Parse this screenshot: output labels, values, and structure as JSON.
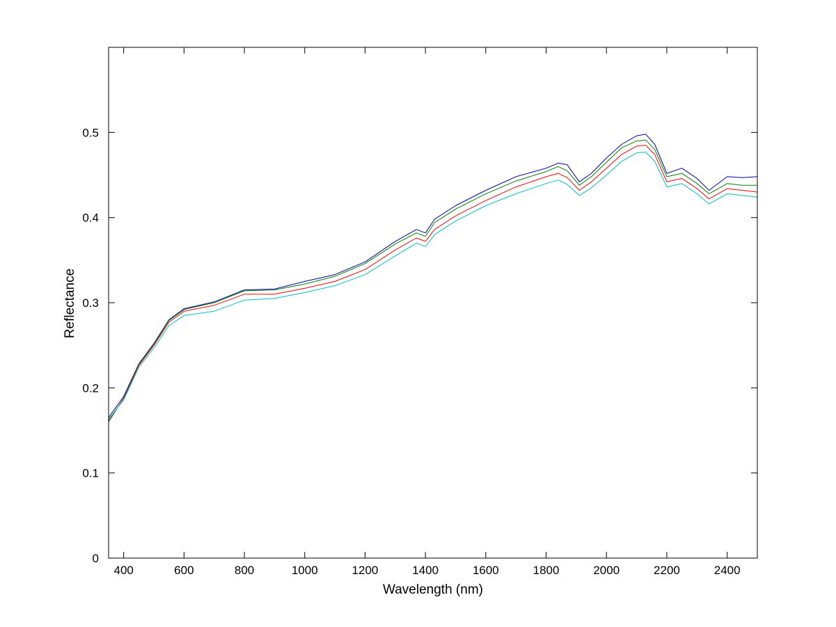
{
  "chart_data": {
    "type": "line",
    "title": "",
    "xlabel": "Wavelength (nm)",
    "ylabel": "Reflectance",
    "xlim": [
      350,
      2500
    ],
    "ylim": [
      0,
      0.6
    ],
    "x_ticks": [
      400,
      600,
      800,
      1000,
      1200,
      1400,
      1600,
      1800,
      2000,
      2200,
      2400
    ],
    "y_ticks": [
      0,
      0.1,
      0.2,
      0.3,
      0.4,
      0.5
    ],
    "y_tick_labels": [
      "0",
      "0.1",
      "0.2",
      "0.3",
      "0.4",
      "0.5"
    ],
    "grid": false,
    "legend": "none",
    "x": [
      350,
      400,
      450,
      500,
      550,
      600,
      700,
      800,
      900,
      1000,
      1100,
      1200,
      1300,
      1370,
      1400,
      1430,
      1500,
      1600,
      1700,
      1800,
      1840,
      1870,
      1910,
      1950,
      2000,
      2050,
      2100,
      2130,
      2160,
      2200,
      2250,
      2300,
      2340,
      2400,
      2450,
      2500
    ],
    "series": [
      {
        "color": "#0000aa",
        "values": [
          0.165,
          0.19,
          0.228,
          0.252,
          0.28,
          0.293,
          0.301,
          0.315,
          0.316,
          0.325,
          0.333,
          0.348,
          0.372,
          0.386,
          0.382,
          0.398,
          0.414,
          0.432,
          0.448,
          0.458,
          0.464,
          0.462,
          0.442,
          0.452,
          0.47,
          0.486,
          0.496,
          0.498,
          0.486,
          0.452,
          0.458,
          0.446,
          0.432,
          0.448,
          0.447,
          0.448
        ]
      },
      {
        "color": "#008000",
        "values": [
          0.16,
          0.188,
          0.227,
          0.251,
          0.279,
          0.292,
          0.3,
          0.314,
          0.315,
          0.322,
          0.331,
          0.346,
          0.369,
          0.382,
          0.378,
          0.394,
          0.41,
          0.428,
          0.443,
          0.454,
          0.46,
          0.455,
          0.438,
          0.448,
          0.465,
          0.482,
          0.49,
          0.491,
          0.48,
          0.448,
          0.452,
          0.44,
          0.428,
          0.44,
          0.438,
          0.438
        ]
      },
      {
        "color": "#ff0000",
        "values": [
          0.162,
          0.187,
          0.226,
          0.25,
          0.277,
          0.29,
          0.297,
          0.31,
          0.31,
          0.317,
          0.325,
          0.339,
          0.362,
          0.376,
          0.372,
          0.386,
          0.402,
          0.42,
          0.436,
          0.448,
          0.452,
          0.447,
          0.432,
          0.442,
          0.458,
          0.474,
          0.484,
          0.485,
          0.474,
          0.442,
          0.446,
          0.434,
          0.422,
          0.434,
          0.432,
          0.43
        ]
      },
      {
        "color": "#00bfbf",
        "values": [
          0.163,
          0.186,
          0.224,
          0.247,
          0.273,
          0.285,
          0.29,
          0.303,
          0.305,
          0.312,
          0.32,
          0.333,
          0.355,
          0.37,
          0.366,
          0.38,
          0.396,
          0.414,
          0.428,
          0.44,
          0.444,
          0.439,
          0.426,
          0.435,
          0.45,
          0.466,
          0.476,
          0.477,
          0.466,
          0.436,
          0.44,
          0.428,
          0.416,
          0.428,
          0.426,
          0.424
        ]
      }
    ]
  }
}
